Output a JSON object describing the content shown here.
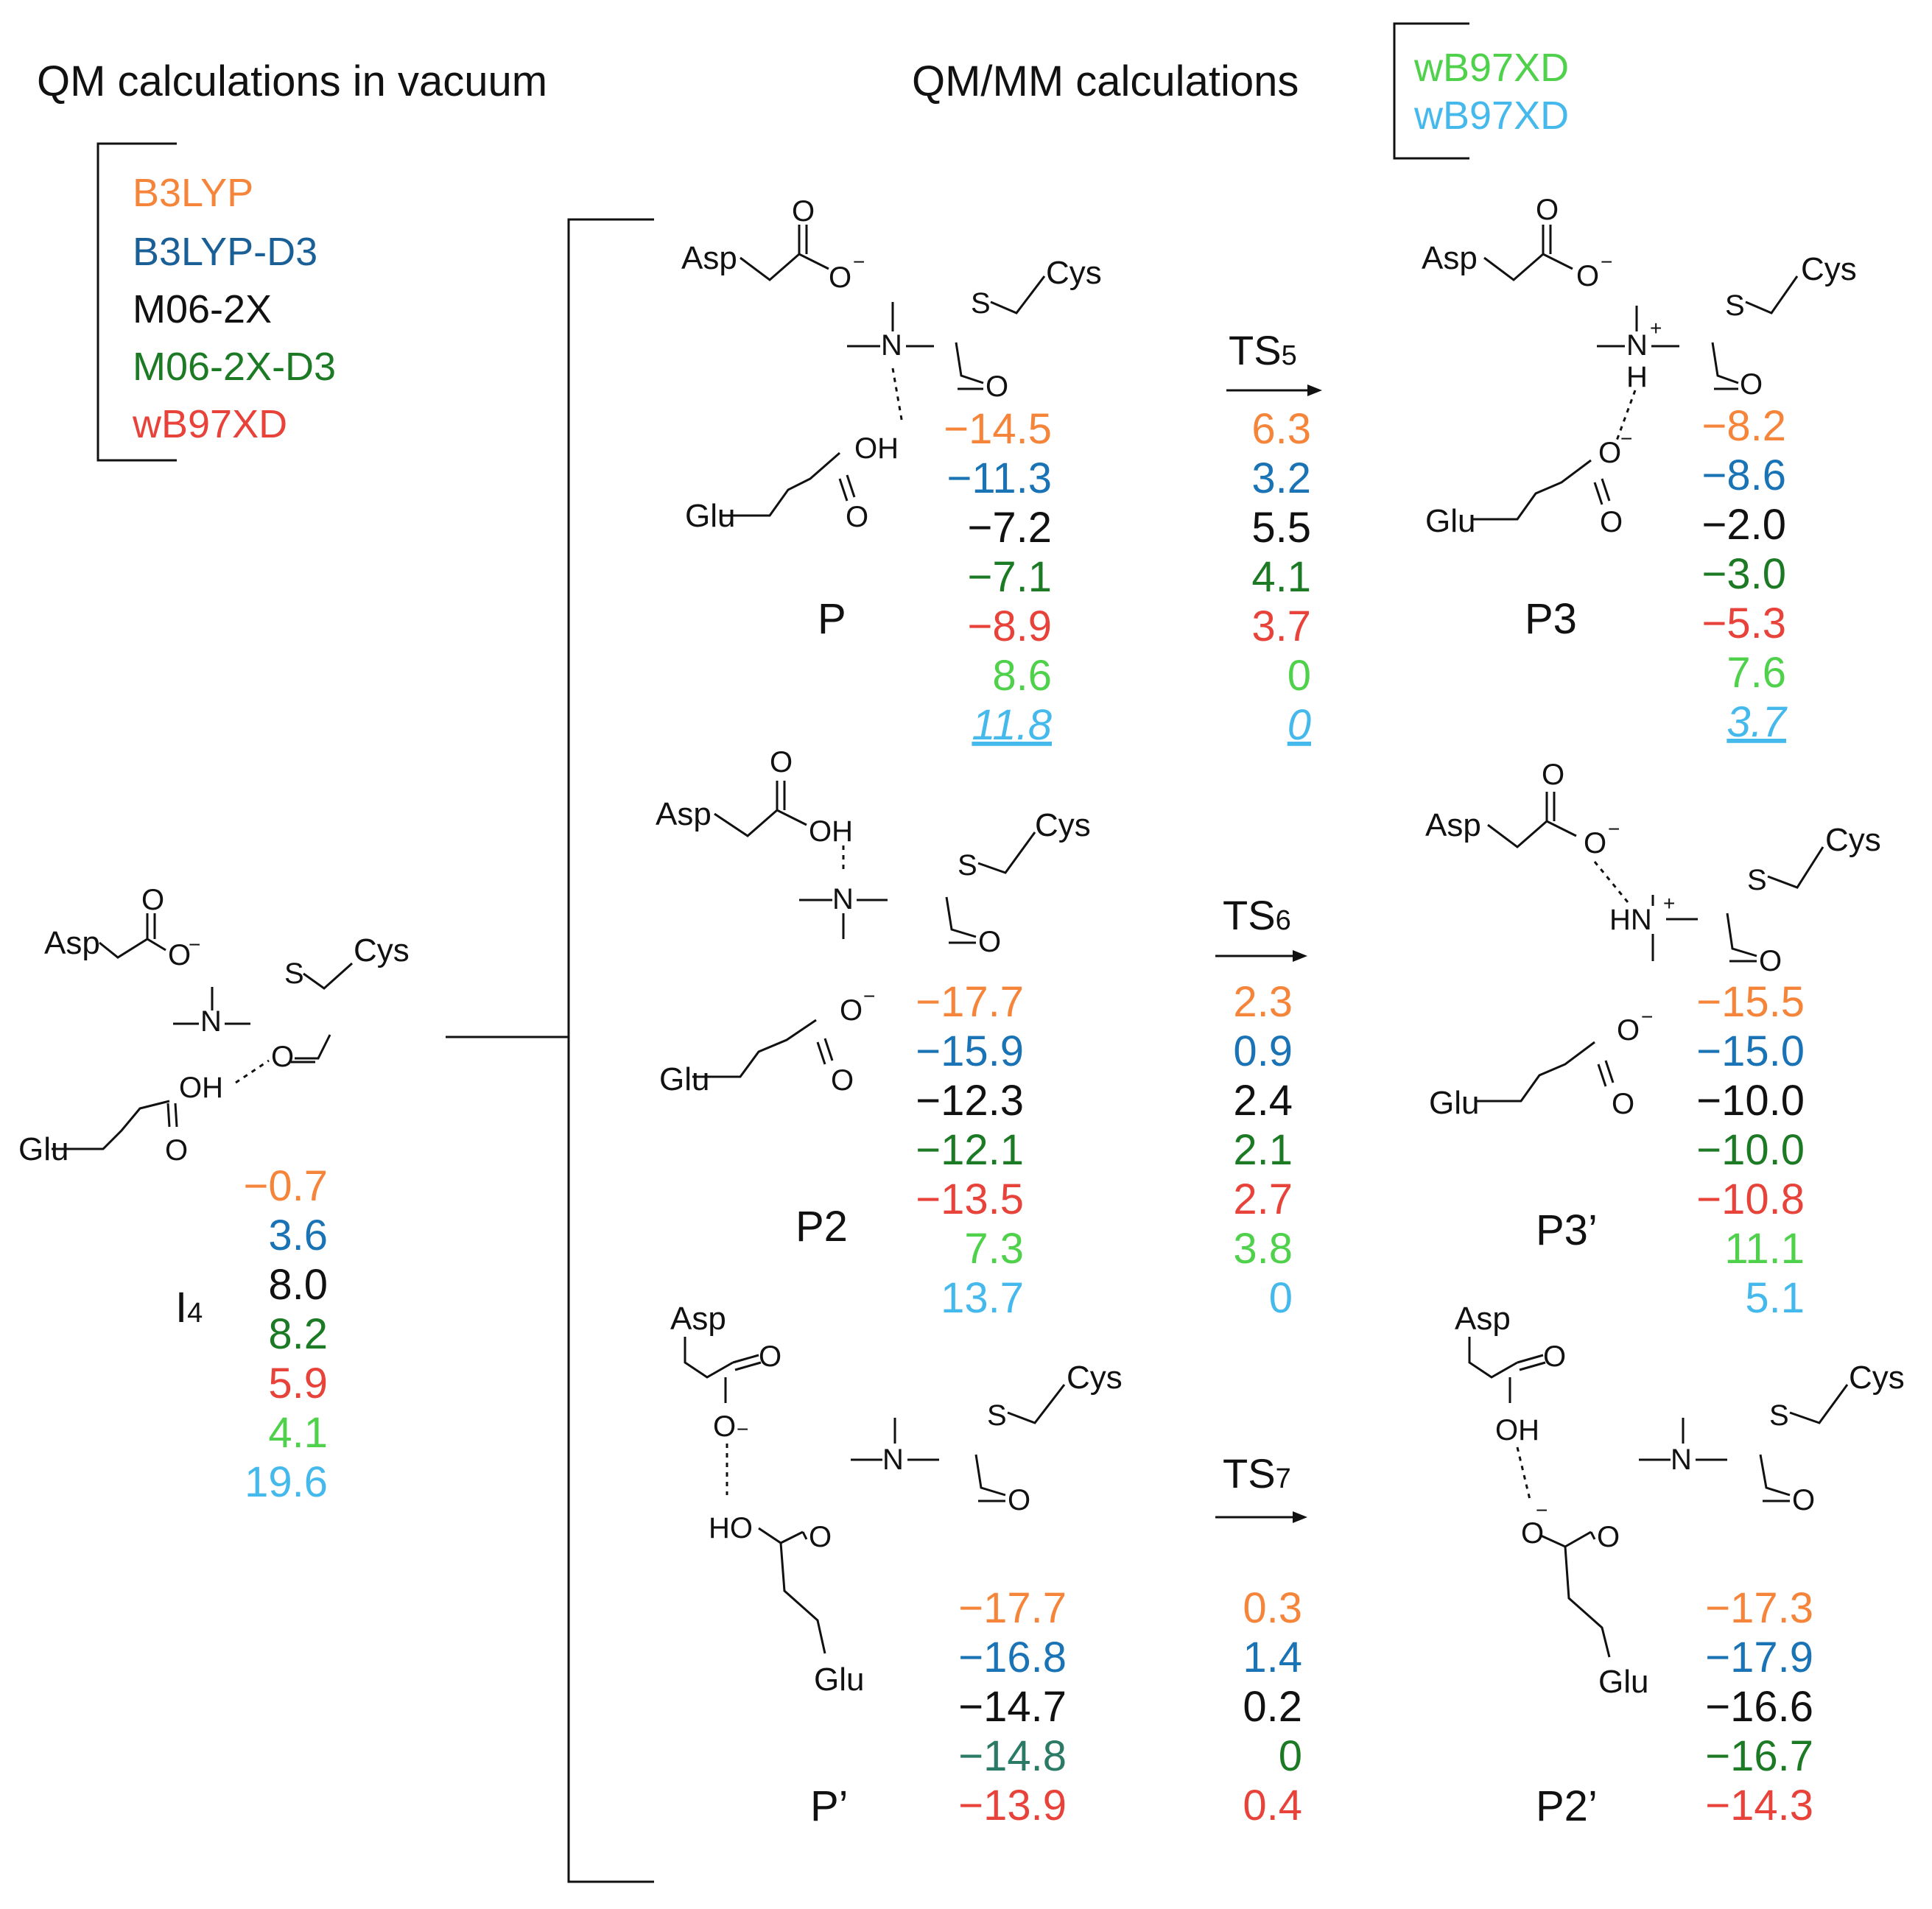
{
  "titles": {
    "qm_vacuum": "QM calculations in vacuum",
    "qmmm": "QM/MM calculations"
  },
  "colors": {
    "b3lyp": "#f5853b",
    "b3lyp_d3": "#1a73b4",
    "m062x": "#111111",
    "m062x_d3": "#1c7a25",
    "m062x_d3_alt": "#2a7a66",
    "wb97xd": "#e8433a",
    "qmmm_green": "#4fd14c",
    "qmmm_blue": "#45b9ec"
  },
  "legend_qm": [
    "B3LYP",
    "B3LYP-D3",
    "M06-2X",
    "M06-2X-D3",
    "wB97XD"
  ],
  "legend_qmmm": [
    "wB97XD",
    "wB97XD"
  ],
  "arrows": [
    {
      "ts": "TS",
      "sub": "5"
    },
    {
      "ts": "TS",
      "sub": "6"
    },
    {
      "ts": "TS",
      "sub": "7"
    }
  ],
  "species": {
    "I4": {
      "name": "I",
      "sub": "4",
      "values": [
        "−0.7",
        "3.6",
        "8.0",
        "8.2",
        "5.9",
        "4.1",
        "19.6"
      ]
    },
    "P": {
      "name": "P",
      "values": [
        "−14.5",
        "−11.3",
        "−7.2",
        "−7.1",
        "−8.9",
        "8.6",
        "11.8"
      ]
    },
    "TS5": {
      "values": [
        "6.3",
        "3.2",
        "5.5",
        "4.1",
        "3.7",
        "0",
        "0"
      ]
    },
    "P3": {
      "name": "P3",
      "values": [
        "−8.2",
        "−8.6",
        "−2.0",
        "−3.0",
        "−5.3",
        "7.6",
        "3.7"
      ]
    },
    "P2": {
      "name": "P2",
      "values": [
        "−17.7",
        "−15.9",
        "−12.3",
        "−12.1",
        "−13.5",
        "7.3",
        "13.7"
      ]
    },
    "TS6": {
      "values": [
        "2.3",
        "0.9",
        "2.4",
        "2.1",
        "2.7",
        "3.8",
        "0"
      ]
    },
    "P3p": {
      "name": "P3’",
      "values": [
        "−15.5",
        "−15.0",
        "−10.0",
        "−10.0",
        "−10.8",
        "11.1",
        "5.1"
      ]
    },
    "Pp": {
      "name": "P’",
      "values": [
        "−17.7",
        "−16.8",
        "−14.7",
        "−14.8",
        "−13.9"
      ]
    },
    "TS7": {
      "values": [
        "0.3",
        "1.4",
        "0.2",
        "0",
        "0.4"
      ]
    },
    "P2p": {
      "name": "P2’",
      "values": [
        "−17.3",
        "−17.9",
        "−16.6",
        "−16.7",
        "−14.3"
      ]
    }
  },
  "atoms": {
    "asp": "Asp",
    "glu": "Glu",
    "cys": "Cys",
    "o": "O",
    "s": "S",
    "n": "N",
    "h": "H",
    "oh": "OH",
    "ho": "HO",
    "hn": "HN",
    "minus": "−",
    "plus": "+"
  }
}
